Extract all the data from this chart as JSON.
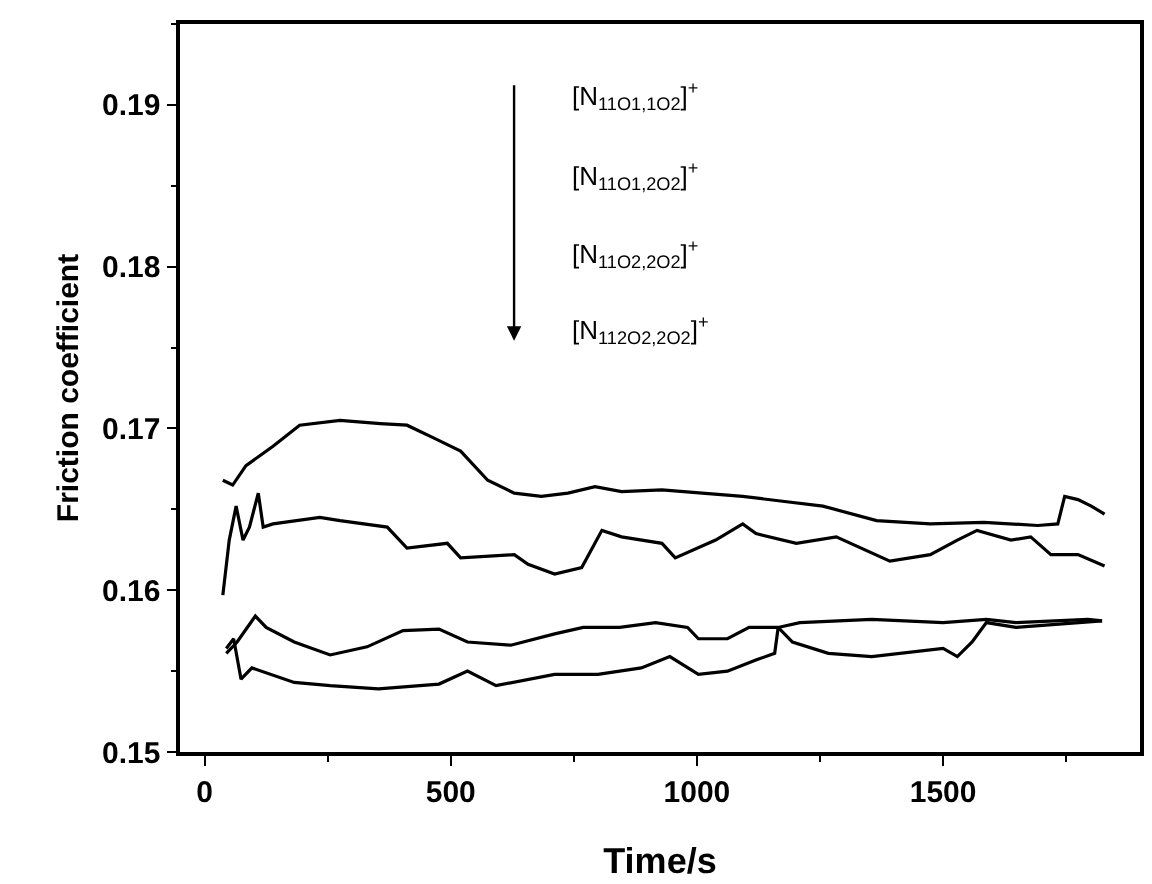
{
  "chart_data": {
    "type": "line",
    "xlabel": "Time/s",
    "ylabel": "Friction coefficient",
    "xlim": [
      -50,
      1900
    ],
    "xticks": [
      0,
      500,
      1000,
      1500
    ],
    "ylim": [
      0.15,
      0.195
    ],
    "yticks": [
      0.15,
      0.16,
      0.17,
      0.18,
      0.19
    ],
    "marker": "none",
    "line_style": "solid",
    "annotations": [
      "[N$_{11O1,1O2}$]$^{+}$",
      "[N$_{11O1,2O2}$]$^{+}$",
      "[N$_{11O2,2O2}$]$^{+}$",
      "[N$_{112O2,2O2}$]$^{+}$"
    ],
    "series": [
      {
        "color": "#000000",
        "x": [
          37,
          57,
          84,
          139,
          193,
          275,
          357,
          411,
          466,
          520,
          575,
          629,
          684,
          738,
          793,
          847,
          929,
          1011,
          1093,
          1174,
          1256,
          1365,
          1474,
          1583,
          1692,
          1733,
          1747,
          1774,
          1801,
          1828
        ],
        "values": [
          0.1668,
          0.1665,
          0.1677,
          0.1689,
          0.1702,
          0.1705,
          0.1703,
          0.1702,
          0.1694,
          0.1686,
          0.1668,
          0.166,
          0.1658,
          0.166,
          0.1664,
          0.1661,
          0.1662,
          0.166,
          0.1658,
          0.1655,
          0.1652,
          0.1643,
          0.1641,
          0.1642,
          0.164,
          0.1641,
          0.1658,
          0.1656,
          0.1652,
          0.1647
        ]
      },
      {
        "color": "#000000",
        "x": [
          37,
          50,
          64,
          78,
          91,
          109,
          119,
          139,
          234,
          275,
          371,
          411,
          493,
          520,
          629,
          657,
          711,
          766,
          807,
          847,
          929,
          956,
          1038,
          1093,
          1120,
          1202,
          1283,
          1392,
          1474,
          1529,
          1569,
          1638,
          1678,
          1719,
          1774,
          1828
        ],
        "values": [
          0.1597,
          0.1631,
          0.1652,
          0.1631,
          0.1639,
          0.166,
          0.1639,
          0.1641,
          0.1645,
          0.1643,
          0.1639,
          0.1626,
          0.1629,
          0.162,
          0.1622,
          0.1616,
          0.161,
          0.1614,
          0.1637,
          0.1633,
          0.1629,
          0.162,
          0.1631,
          0.1641,
          0.1635,
          0.1629,
          0.1633,
          0.1618,
          0.1622,
          0.1631,
          0.1637,
          0.1631,
          0.1633,
          0.1622,
          0.1622,
          0.1615
        ]
      },
      {
        "color": "#000000",
        "x": [
          44,
          66,
          103,
          125,
          182,
          255,
          330,
          403,
          476,
          534,
          622,
          711,
          769,
          843,
          916,
          981,
          1003,
          1062,
          1106,
          1165,
          1209,
          1355,
          1500,
          1588,
          1648,
          1794,
          1823
        ],
        "values": [
          0.1561,
          0.1568,
          0.1584,
          0.1577,
          0.1568,
          0.156,
          0.1565,
          0.1575,
          0.1576,
          0.1568,
          0.1566,
          0.1573,
          0.1577,
          0.1577,
          0.158,
          0.1577,
          0.157,
          0.157,
          0.1577,
          0.1577,
          0.158,
          0.1582,
          0.158,
          0.1582,
          0.158,
          0.1582,
          0.1581
        ]
      },
      {
        "color": "#000000",
        "x": [
          44,
          59,
          74,
          96,
          182,
          255,
          353,
          476,
          534,
          592,
          711,
          799,
          887,
          945,
          1003,
          1062,
          1121,
          1158,
          1165,
          1194,
          1267,
          1355,
          1500,
          1529,
          1559,
          1588,
          1648,
          1823
        ],
        "values": [
          0.1564,
          0.157,
          0.1545,
          0.1552,
          0.1543,
          0.1541,
          0.1539,
          0.1542,
          0.155,
          0.1541,
          0.1548,
          0.1548,
          0.1552,
          0.1559,
          0.1548,
          0.155,
          0.1557,
          0.1561,
          0.1577,
          0.1568,
          0.1561,
          0.1559,
          0.1564,
          0.1559,
          0.1568,
          0.158,
          0.1577,
          0.1581
        ]
      }
    ]
  }
}
